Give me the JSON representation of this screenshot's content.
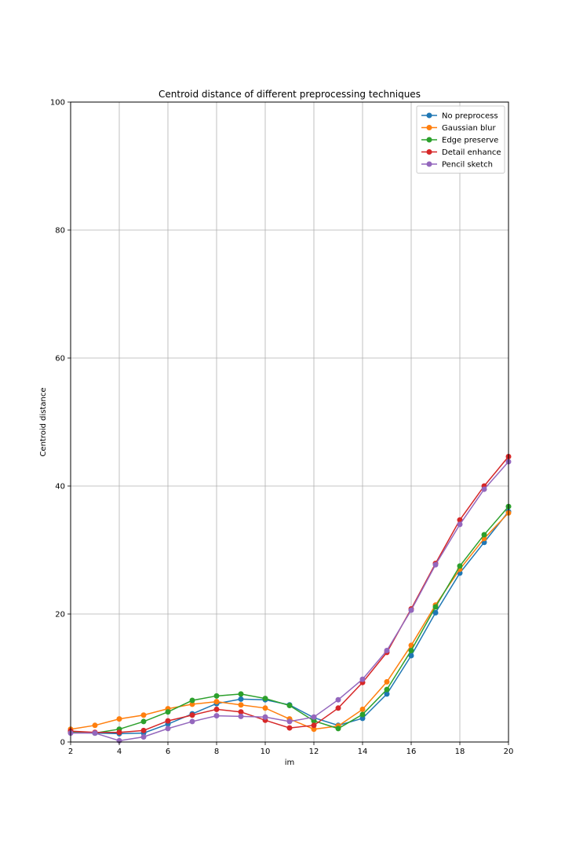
{
  "chart_data": {
    "type": "line",
    "title": "Centroid distance of different preprocessing techniques",
    "xlabel": "im",
    "ylabel": "Centroid distance",
    "xlim": [
      2,
      20
    ],
    "ylim": [
      0,
      100
    ],
    "xticks": [
      2,
      4,
      6,
      8,
      10,
      12,
      14,
      16,
      18,
      20
    ],
    "yticks": [
      0,
      20,
      40,
      60,
      80,
      100
    ],
    "grid": true,
    "legend_position": "top-right",
    "x": [
      2,
      3,
      4,
      5,
      6,
      7,
      8,
      9,
      10,
      11,
      12,
      13,
      14,
      15,
      16,
      17,
      18,
      19,
      20
    ],
    "series": [
      {
        "name": "No preprocess",
        "color": "#1f77b4",
        "values": [
          1.6,
          1.4,
          1.3,
          1.4,
          2.8,
          4.4,
          6.0,
          6.7,
          6.6,
          5.8,
          3.8,
          2.6,
          3.7,
          7.5,
          13.5,
          20.2,
          26.4,
          31.2,
          36.0
        ]
      },
      {
        "name": "Gaussian blur",
        "color": "#ff7f0e",
        "values": [
          2.0,
          2.6,
          3.6,
          4.2,
          5.2,
          5.9,
          6.3,
          5.8,
          5.3,
          3.6,
          2.0,
          2.5,
          5.1,
          9.4,
          15.1,
          21.4,
          27.0,
          31.8,
          35.8
        ]
      },
      {
        "name": "Edge preserve",
        "color": "#2ca02c",
        "values": [
          1.5,
          1.4,
          2.0,
          3.2,
          4.7,
          6.5,
          7.2,
          7.5,
          6.8,
          5.7,
          3.3,
          2.1,
          4.3,
          8.2,
          14.3,
          21.1,
          27.5,
          32.4,
          36.8
        ]
      },
      {
        "name": "Detail enhance",
        "color": "#d62728",
        "values": [
          1.7,
          1.5,
          1.5,
          1.8,
          3.3,
          4.2,
          5.1,
          4.7,
          3.4,
          2.2,
          2.6,
          5.3,
          9.3,
          14.0,
          20.8,
          27.9,
          34.7,
          40.0,
          44.6
        ]
      },
      {
        "name": "Pencil sketch",
        "color": "#9467bd",
        "values": [
          1.4,
          1.4,
          0.2,
          0.8,
          2.1,
          3.2,
          4.1,
          4.0,
          3.9,
          3.2,
          3.9,
          6.6,
          9.8,
          14.3,
          20.6,
          27.7,
          34.0,
          39.5,
          43.8
        ]
      }
    ]
  }
}
